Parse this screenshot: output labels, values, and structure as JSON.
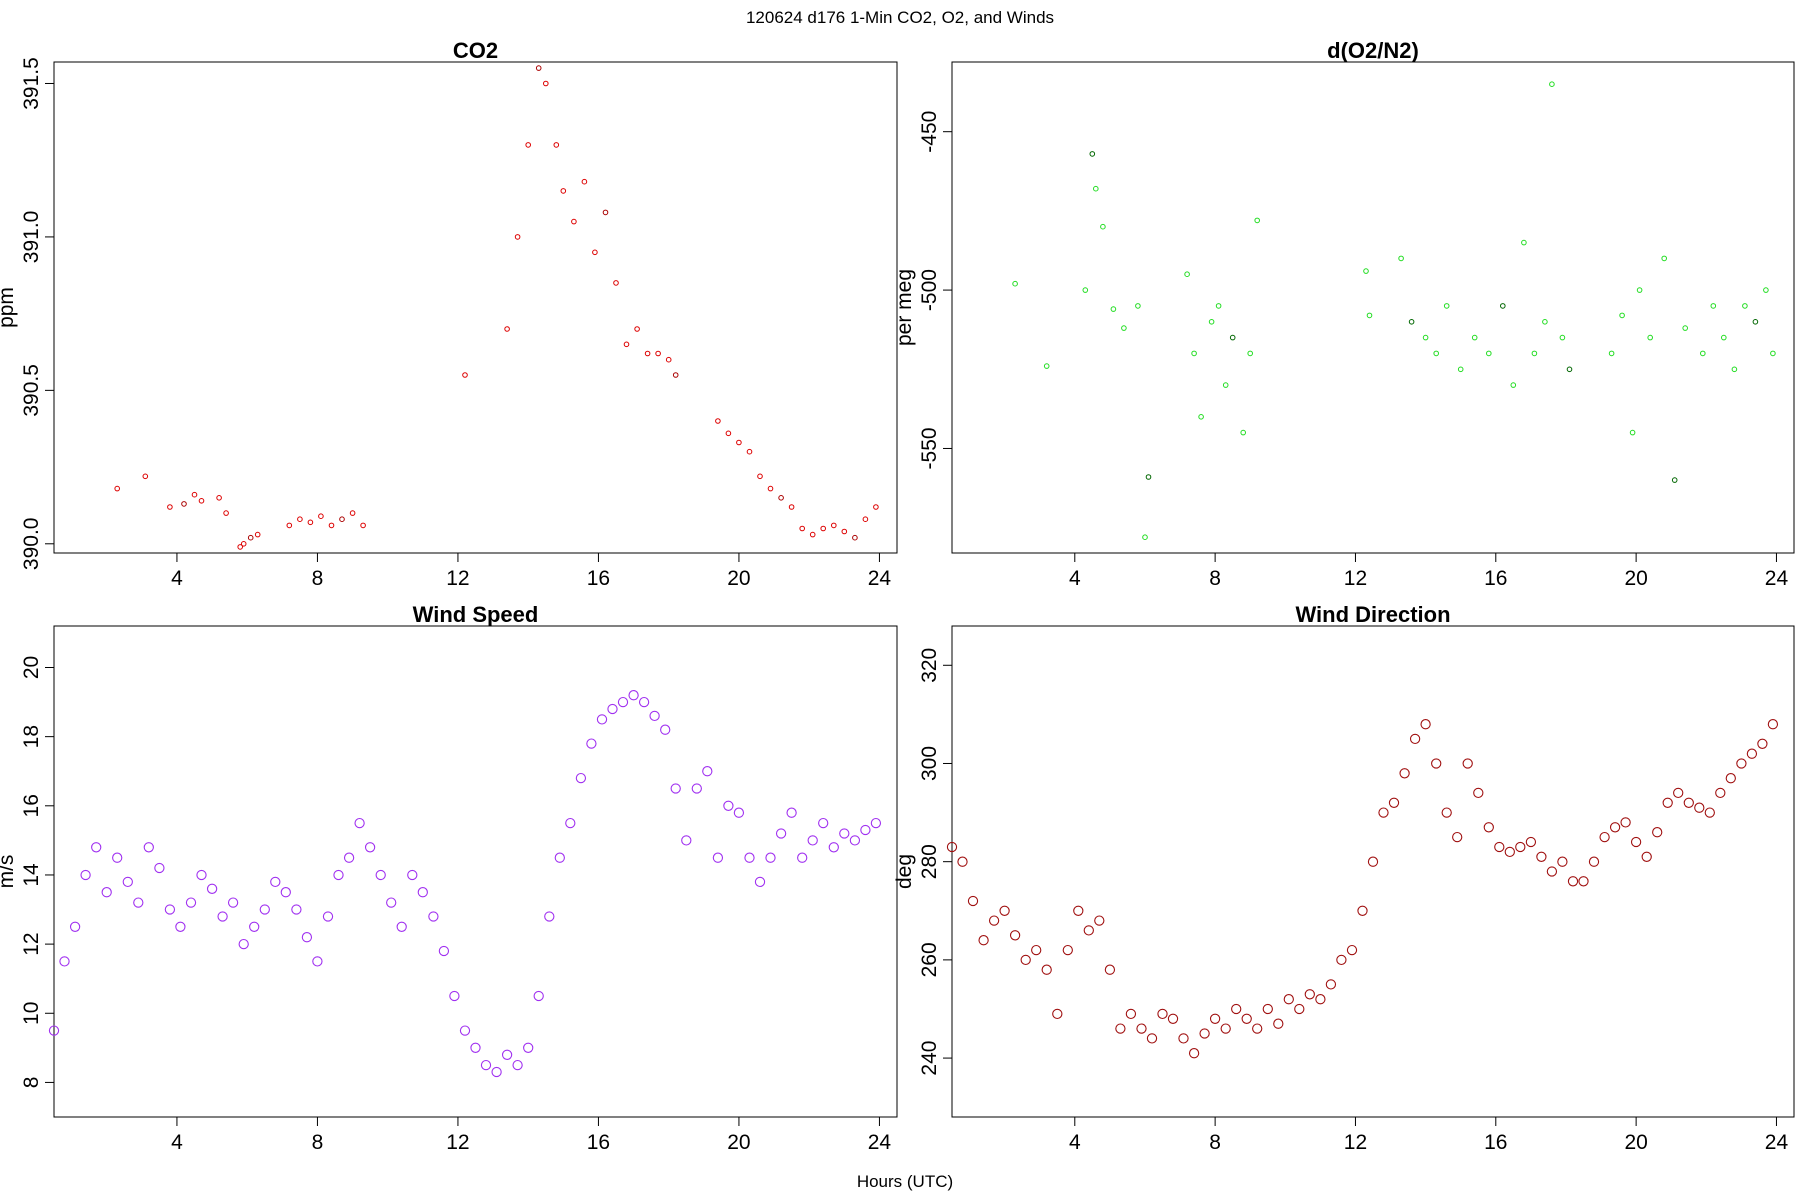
{
  "figure": {
    "title": "120624   d176   1-Min CO2, O2, and Winds",
    "x_axis_label": "Hours (UTC)"
  },
  "chart_data": [
    {
      "id": "co2",
      "type": "scatter",
      "title": "CO2",
      "xlabel": "",
      "ylabel": "ppm",
      "xlim": [
        0.5,
        24.5
      ],
      "ylim": [
        389.97,
        391.57
      ],
      "x_ticks": [
        4,
        8,
        12,
        16,
        20,
        24
      ],
      "y_ticks": [
        390.0,
        390.5,
        391.0,
        391.5
      ],
      "y_tick_labels": [
        "390.0",
        "390.5",
        "391.0",
        "391.5"
      ],
      "color": "#dd0000",
      "alt_color": "#aa0000",
      "marker_size": "small",
      "series": [
        {
          "x": [
            2.3,
            3.1,
            3.8,
            4.2,
            4.5,
            4.7,
            5.2,
            5.4,
            5.8,
            5.9,
            6.1,
            6.3,
            7.2,
            7.5,
            7.8,
            8.1,
            8.4,
            8.7,
            9.0,
            9.3,
            12.2,
            13.4,
            13.7,
            14.0,
            14.3,
            14.5,
            14.8,
            15.0,
            15.3,
            15.6,
            15.9,
            16.2,
            16.5,
            16.8,
            17.1,
            17.4,
            17.7,
            18.0,
            18.2,
            19.4,
            19.7,
            20.0,
            20.3,
            20.6,
            20.9,
            21.2,
            21.5,
            21.8,
            22.1,
            22.4,
            22.7,
            23.0,
            23.3,
            23.6,
            23.9
          ],
          "y": [
            390.18,
            390.22,
            390.12,
            390.13,
            390.16,
            390.14,
            390.15,
            390.1,
            389.99,
            390.0,
            390.02,
            390.03,
            390.06,
            390.08,
            390.07,
            390.09,
            390.06,
            390.08,
            390.1,
            390.06,
            390.55,
            390.7,
            391.0,
            391.3,
            391.55,
            391.5,
            391.3,
            391.15,
            391.05,
            391.18,
            390.95,
            391.08,
            390.85,
            390.65,
            390.7,
            390.62,
            390.62,
            390.6,
            390.55,
            390.4,
            390.36,
            390.33,
            390.3,
            390.22,
            390.18,
            390.15,
            390.12,
            390.05,
            390.03,
            390.05,
            390.06,
            390.04,
            390.02,
            390.08,
            390.12
          ]
        }
      ]
    },
    {
      "id": "o2n2",
      "type": "scatter",
      "title": "d(O2/N2)",
      "xlabel": "",
      "ylabel": "per meg",
      "xlim": [
        0.5,
        24.5
      ],
      "ylim": [
        -583,
        -428
      ],
      "x_ticks": [
        4,
        8,
        12,
        16,
        20,
        24
      ],
      "y_ticks": [
        -550,
        -500,
        -450
      ],
      "y_tick_labels": [
        "-550",
        "-500",
        "-450"
      ],
      "color": "#22dd22",
      "alt_color": "#006600",
      "marker_size": "small",
      "series": [
        {
          "x": [
            2.3,
            3.2,
            4.3,
            4.5,
            4.6,
            4.8,
            5.1,
            5.4,
            5.8,
            6.0,
            6.1,
            7.2,
            7.4,
            7.6,
            7.9,
            8.1,
            8.3,
            8.5,
            8.8,
            9.0,
            9.2,
            12.3,
            12.4,
            13.3,
            13.6,
            14.0,
            14.3,
            14.6,
            15.0,
            15.4,
            15.8,
            16.2,
            16.5,
            16.8,
            17.1,
            17.4,
            17.6,
            17.9,
            18.1,
            19.3,
            19.6,
            19.9,
            20.1,
            20.4,
            20.8,
            21.1,
            21.4,
            21.9,
            22.2,
            22.5,
            22.8,
            23.1,
            23.4,
            23.7,
            23.9
          ],
          "y": [
            -498,
            -524,
            -500,
            -457,
            -468,
            -480,
            -506,
            -512,
            -505,
            -578,
            -559,
            -495,
            -520,
            -540,
            -510,
            -505,
            -530,
            -515,
            -545,
            -520,
            -478,
            -494,
            -508,
            -490,
            -510,
            -515,
            -520,
            -505,
            -525,
            -515,
            -520,
            -505,
            -530,
            -485,
            -520,
            -510,
            -435,
            -515,
            -525,
            -520,
            -508,
            -545,
            -500,
            -515,
            -490,
            -560,
            -512,
            -520,
            -505,
            -515,
            -525,
            -505,
            -510,
            -500,
            -520
          ]
        }
      ]
    },
    {
      "id": "wind_speed",
      "type": "scatter",
      "title": "Wind Speed",
      "xlabel": "",
      "ylabel": "m/s",
      "xlim": [
        0.5,
        24.5
      ],
      "ylim": [
        7.0,
        21.2
      ],
      "x_ticks": [
        4,
        8,
        12,
        16,
        20,
        24
      ],
      "y_ticks": [
        8,
        10,
        12,
        14,
        16,
        18,
        20
      ],
      "y_tick_labels": [
        "8",
        "10",
        "12",
        "14",
        "16",
        "18",
        "20"
      ],
      "color": "#a030f0",
      "alt_color": "#a030f0",
      "marker_size": "large",
      "series": [
        {
          "x": [
            0.5,
            0.8,
            1.1,
            1.4,
            1.7,
            2.0,
            2.3,
            2.6,
            2.9,
            3.2,
            3.5,
            3.8,
            4.1,
            4.4,
            4.7,
            5.0,
            5.3,
            5.6,
            5.9,
            6.2,
            6.5,
            6.8,
            7.1,
            7.4,
            7.7,
            8.0,
            8.3,
            8.6,
            8.9,
            9.2,
            9.5,
            9.8,
            10.1,
            10.4,
            10.7,
            11.0,
            11.3,
            11.6,
            11.9,
            12.2,
            12.5,
            12.8,
            13.1,
            13.4,
            13.7,
            14.0,
            14.3,
            14.6,
            14.9,
            15.2,
            15.5,
            15.8,
            16.1,
            16.4,
            16.7,
            17.0,
            17.3,
            17.6,
            17.9,
            18.2,
            18.5,
            18.8,
            19.1,
            19.4,
            19.7,
            20.0,
            20.3,
            20.6,
            20.9,
            21.2,
            21.5,
            21.8,
            22.1,
            22.4,
            22.7,
            23.0,
            23.3,
            23.6,
            23.9
          ],
          "y": [
            9.5,
            11.5,
            12.5,
            14.0,
            14.8,
            13.5,
            14.5,
            13.8,
            13.2,
            14.8,
            14.2,
            13.0,
            12.5,
            13.2,
            14.0,
            13.6,
            12.8,
            13.2,
            12.0,
            12.5,
            13.0,
            13.8,
            13.5,
            13.0,
            12.2,
            11.5,
            12.8,
            14.0,
            14.5,
            15.5,
            14.8,
            14.0,
            13.2,
            12.5,
            14.0,
            13.5,
            12.8,
            11.8,
            10.5,
            9.5,
            9.0,
            8.5,
            8.3,
            8.8,
            8.5,
            9.0,
            10.5,
            12.8,
            14.5,
            15.5,
            16.8,
            17.8,
            18.5,
            18.8,
            19.0,
            19.2,
            19.0,
            18.6,
            18.2,
            16.5,
            15.0,
            16.5,
            17.0,
            14.5,
            16.0,
            15.8,
            14.5,
            13.8,
            14.5,
            15.2,
            15.8,
            14.5,
            15.0,
            15.5,
            14.8,
            15.2,
            15.0,
            15.3,
            15.5
          ]
        }
      ]
    },
    {
      "id": "wind_direction",
      "type": "scatter",
      "title": "Wind Direction",
      "xlabel": "",
      "ylabel": "deg",
      "xlim": [
        0.5,
        24.5
      ],
      "ylim": [
        228,
        328
      ],
      "x_ticks": [
        4,
        8,
        12,
        16,
        20,
        24
      ],
      "y_ticks": [
        240,
        260,
        280,
        300,
        320
      ],
      "y_tick_labels": [
        "240",
        "260",
        "280",
        "300",
        "320"
      ],
      "color": "#a01010",
      "alt_color": "#a01010",
      "marker_size": "large",
      "series": [
        {
          "x": [
            0.5,
            0.8,
            1.1,
            1.4,
            1.7,
            2.0,
            2.3,
            2.6,
            2.9,
            3.2,
            3.5,
            3.8,
            4.1,
            4.4,
            4.7,
            5.0,
            5.3,
            5.6,
            5.9,
            6.2,
            6.5,
            6.8,
            7.1,
            7.4,
            7.7,
            8.0,
            8.3,
            8.6,
            8.9,
            9.2,
            9.5,
            9.8,
            10.1,
            10.4,
            10.7,
            11.0,
            11.3,
            11.6,
            11.9,
            12.2,
            12.5,
            12.8,
            13.1,
            13.4,
            13.7,
            14.0,
            14.3,
            14.6,
            14.9,
            15.2,
            15.5,
            15.8,
            16.1,
            16.4,
            16.7,
            17.0,
            17.3,
            17.6,
            17.9,
            18.2,
            18.5,
            18.8,
            19.1,
            19.4,
            19.7,
            20.0,
            20.3,
            20.6,
            20.9,
            21.2,
            21.5,
            21.8,
            22.1,
            22.4,
            22.7,
            23.0,
            23.3,
            23.6,
            23.9
          ],
          "y": [
            283,
            280,
            272,
            264,
            268,
            270,
            265,
            260,
            262,
            258,
            249,
            262,
            270,
            266,
            268,
            258,
            246,
            249,
            246,
            244,
            249,
            248,
            244,
            241,
            245,
            248,
            246,
            250,
            248,
            246,
            250,
            247,
            252,
            250,
            253,
            252,
            255,
            260,
            262,
            270,
            280,
            290,
            292,
            298,
            305,
            308,
            300,
            290,
            285,
            300,
            294,
            287,
            283,
            282,
            283,
            284,
            281,
            278,
            280,
            276,
            276,
            280,
            285,
            287,
            288,
            284,
            281,
            286,
            292,
            294,
            292,
            291,
            290,
            294,
            297,
            300,
            302,
            304,
            308
          ]
        }
      ]
    }
  ]
}
